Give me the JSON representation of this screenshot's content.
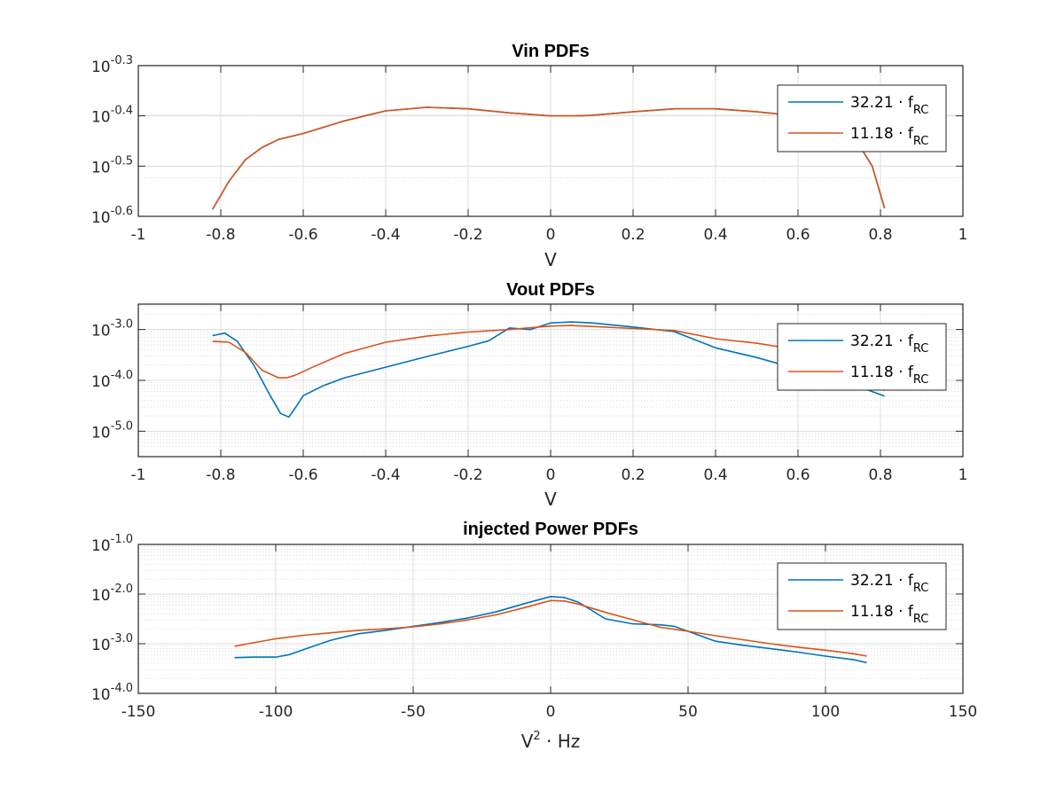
{
  "colors": {
    "series1": "#0072BD",
    "series2": "#D95319"
  },
  "chart_data": [
    {
      "type": "line",
      "title": "Vin PDFs",
      "xlabel": "V",
      "ylabel": "",
      "xlim": [
        -1,
        1
      ],
      "ylim_log10": [
        -0.6,
        -0.3
      ],
      "yscale": "log",
      "xticks": [
        -1,
        -0.8,
        -0.6,
        -0.4,
        -0.2,
        0,
        0.2,
        0.4,
        0.6,
        0.8,
        1
      ],
      "xtick_labels": [
        "-1",
        "-0.8",
        "-0.6",
        "-0.4",
        "-0.2",
        "0",
        "0.2",
        "0.4",
        "0.6",
        "0.8",
        "1"
      ],
      "yticks_log10": [
        -0.6,
        -0.5,
        -0.4,
        -0.3
      ],
      "ytick_exponents": [
        "-0.6",
        "-0.5",
        "-0.4",
        "-0.3"
      ],
      "grid": true,
      "legend_position": "top-right",
      "series": [
        {
          "name": "32.21 · f",
          "name_sub": "RC",
          "color": "#0072BD",
          "x": [
            -0.82,
            -0.78,
            -0.74,
            -0.7,
            -0.66,
            -0.6,
            -0.5,
            -0.4,
            -0.3,
            -0.2,
            -0.1,
            0.0,
            0.06,
            0.1,
            0.2,
            0.3,
            0.4,
            0.5,
            0.6,
            0.66,
            0.7,
            0.74,
            0.78,
            0.81
          ],
          "log10_y": [
            -0.586,
            -0.53,
            -0.487,
            -0.463,
            -0.447,
            -0.435,
            -0.41,
            -0.39,
            -0.383,
            -0.386,
            -0.394,
            -0.4,
            -0.4,
            -0.399,
            -0.392,
            -0.386,
            -0.386,
            -0.392,
            -0.4,
            -0.407,
            -0.42,
            -0.447,
            -0.5,
            -0.584
          ]
        },
        {
          "name": "11.18 · f",
          "name_sub": "RC",
          "color": "#D95319",
          "x": [
            -0.82,
            -0.78,
            -0.74,
            -0.7,
            -0.66,
            -0.6,
            -0.5,
            -0.4,
            -0.3,
            -0.2,
            -0.1,
            0.0,
            0.06,
            0.1,
            0.2,
            0.3,
            0.4,
            0.5,
            0.6,
            0.66,
            0.7,
            0.74,
            0.78,
            0.81
          ],
          "log10_y": [
            -0.586,
            -0.53,
            -0.487,
            -0.463,
            -0.447,
            -0.435,
            -0.41,
            -0.39,
            -0.383,
            -0.386,
            -0.394,
            -0.4,
            -0.4,
            -0.399,
            -0.392,
            -0.386,
            -0.386,
            -0.392,
            -0.4,
            -0.407,
            -0.42,
            -0.447,
            -0.5,
            -0.584
          ]
        }
      ]
    },
    {
      "type": "line",
      "title": "Vout PDFs",
      "xlabel": "V",
      "ylabel": "",
      "xlim": [
        -1,
        1
      ],
      "ylim_log10": [
        -5.5,
        -2.5
      ],
      "yscale": "log",
      "xticks": [
        -1,
        -0.8,
        -0.6,
        -0.4,
        -0.2,
        0,
        0.2,
        0.4,
        0.6,
        0.8,
        1
      ],
      "xtick_labels": [
        "-1",
        "-0.8",
        "-0.6",
        "-0.4",
        "-0.2",
        "0",
        "0.2",
        "0.4",
        "0.6",
        "0.8",
        "1"
      ],
      "yticks_log10": [
        -5.0,
        -4.0,
        -3.0
      ],
      "ytick_exponents": [
        "-5.0",
        "-4.0",
        "-3.0"
      ],
      "grid": true,
      "legend_position": "top-right",
      "series": [
        {
          "name": "32.21 · f",
          "name_sub": "RC",
          "color": "#0072BD",
          "x": [
            -0.82,
            -0.79,
            -0.76,
            -0.72,
            -0.68,
            -0.655,
            -0.635,
            -0.62,
            -0.6,
            -0.55,
            -0.5,
            -0.4,
            -0.3,
            -0.2,
            -0.15,
            -0.1,
            -0.05,
            0.0,
            0.05,
            0.1,
            0.2,
            0.3,
            0.4,
            0.5,
            0.6,
            0.7,
            0.78,
            0.81
          ],
          "log10_y": [
            -3.12,
            -3.07,
            -3.23,
            -3.7,
            -4.3,
            -4.65,
            -4.72,
            -4.55,
            -4.3,
            -4.1,
            -3.95,
            -3.74,
            -3.53,
            -3.33,
            -3.22,
            -2.97,
            -3.0,
            -2.87,
            -2.85,
            -2.87,
            -2.95,
            -3.04,
            -3.36,
            -3.55,
            -3.78,
            -3.97,
            -4.22,
            -4.31
          ]
        },
        {
          "name": "11.18 · f",
          "name_sub": "RC",
          "color": "#D95319",
          "x": [
            -0.82,
            -0.78,
            -0.74,
            -0.7,
            -0.66,
            -0.64,
            -0.62,
            -0.58,
            -0.5,
            -0.4,
            -0.3,
            -0.2,
            -0.1,
            0.0,
            0.05,
            0.1,
            0.2,
            0.3,
            0.4,
            0.5,
            0.6,
            0.7,
            0.78,
            0.81
          ],
          "log10_y": [
            -3.23,
            -3.25,
            -3.45,
            -3.8,
            -3.95,
            -3.95,
            -3.9,
            -3.75,
            -3.47,
            -3.25,
            -3.13,
            -3.05,
            -3.0,
            -2.93,
            -2.92,
            -2.94,
            -2.98,
            -3.02,
            -3.18,
            -3.27,
            -3.4,
            -3.55,
            -4.05,
            -4.2
          ]
        }
      ]
    },
    {
      "type": "line",
      "title": "injected Power PDFs",
      "xlabel": "V",
      "xlabel_sup": "2",
      "xlabel_suffix": " · Hz",
      "ylabel": "",
      "xlim": [
        -150,
        150
      ],
      "ylim_log10": [
        -4.0,
        -1.0
      ],
      "yscale": "log",
      "xticks": [
        -150,
        -100,
        -50,
        0,
        50,
        100,
        150
      ],
      "xtick_labels": [
        "-150",
        "-100",
        "-50",
        "0",
        "50",
        "100",
        "150"
      ],
      "yticks_log10": [
        -4.0,
        -3.0,
        -2.0,
        -1.0
      ],
      "ytick_exponents": [
        "-4.0",
        "-3.0",
        "-2.0",
        "-1.0"
      ],
      "grid": true,
      "legend_position": "top-right",
      "series": [
        {
          "name": "32.21 · f",
          "name_sub": "RC",
          "color": "#0072BD",
          "x": [
            -115,
            -108,
            -100,
            -95,
            -90,
            -80,
            -70,
            -60,
            -50,
            -40,
            -30,
            -20,
            -10,
            0,
            5,
            10,
            20,
            30,
            40,
            45,
            50,
            60,
            70,
            80,
            90,
            100,
            110,
            115
          ],
          "log10_y": [
            -3.28,
            -3.27,
            -3.27,
            -3.22,
            -3.12,
            -2.93,
            -2.8,
            -2.73,
            -2.65,
            -2.57,
            -2.48,
            -2.36,
            -2.2,
            -2.05,
            -2.07,
            -2.16,
            -2.5,
            -2.6,
            -2.62,
            -2.65,
            -2.75,
            -2.95,
            -3.03,
            -3.1,
            -3.17,
            -3.25,
            -3.32,
            -3.38
          ]
        },
        {
          "name": "11.18 · f",
          "name_sub": "RC",
          "color": "#D95319",
          "x": [
            -115,
            -110,
            -100,
            -90,
            -80,
            -70,
            -60,
            -50,
            -40,
            -30,
            -20,
            -10,
            0,
            5,
            10,
            20,
            30,
            40,
            50,
            60,
            70,
            80,
            90,
            100,
            110,
            115
          ],
          "log10_y": [
            -3.05,
            -3.0,
            -2.9,
            -2.83,
            -2.78,
            -2.73,
            -2.7,
            -2.66,
            -2.6,
            -2.52,
            -2.42,
            -2.28,
            -2.13,
            -2.14,
            -2.2,
            -2.37,
            -2.52,
            -2.67,
            -2.75,
            -2.84,
            -2.92,
            -3.0,
            -3.07,
            -3.13,
            -3.2,
            -3.25
          ]
        }
      ]
    }
  ]
}
